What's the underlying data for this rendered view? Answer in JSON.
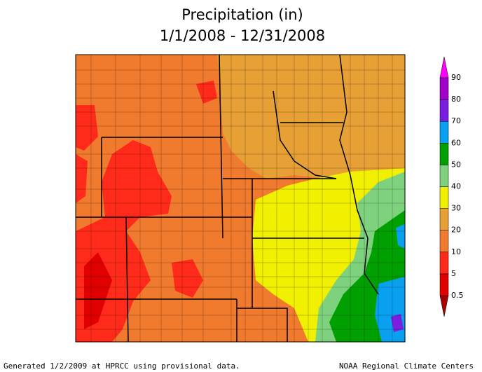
{
  "header": {
    "title": "Precipitation (in)",
    "subtitle": "1/1/2008 - 12/31/2008"
  },
  "legend": {
    "ticks": [
      0.5,
      5,
      10,
      20,
      30,
      40,
      50,
      60,
      70,
      80,
      90
    ],
    "colors": [
      "#a80000",
      "#e00000",
      "#ff2a1a",
      "#f07a2e",
      "#e6a035",
      "#f0f000",
      "#7ed27e",
      "#00a000",
      "#0aa0f0",
      "#7a1ee0",
      "#a000c8",
      "#ff00ff"
    ]
  },
  "footer": {
    "left": "Generated 1/2/2009 at HPRCC using provisional data.",
    "right": "NOAA Regional Climate Centers"
  }
}
